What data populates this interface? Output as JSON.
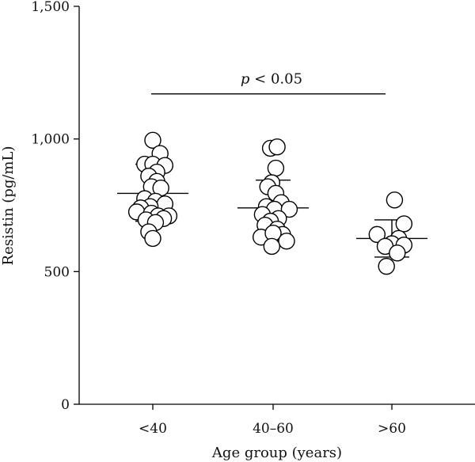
{
  "chart_data": {
    "type": "scatter",
    "title": "",
    "xlabel": "Age group (years)",
    "ylabel": "Resistin (pg/mL)",
    "ylim": [
      0,
      1500
    ],
    "y_ticks": [
      0,
      500,
      1000,
      1500
    ],
    "y_tick_labels": [
      "0",
      "500",
      "1,000",
      "1,500"
    ],
    "categories": [
      "<40",
      "40–60",
      ">60"
    ],
    "annotation": {
      "text_italic": "p",
      "text_rest": " < 0.05",
      "from_category": "<40",
      "to_category": ">60",
      "y": 1170
    },
    "groups": [
      {
        "category": "<40",
        "mean": 795,
        "sd_upper": 905,
        "sd_lower": 690,
        "points": [
          {
            "j": 0.0,
            "v": 995
          },
          {
            "j": 0.27,
            "v": 945
          },
          {
            "j": -0.3,
            "v": 905
          },
          {
            "j": 0.0,
            "v": 905
          },
          {
            "j": 0.45,
            "v": 900
          },
          {
            "j": 0.15,
            "v": 875
          },
          {
            "j": -0.15,
            "v": 860
          },
          {
            "j": 0.15,
            "v": 840
          },
          {
            "j": -0.05,
            "v": 820
          },
          {
            "j": 0.3,
            "v": 815
          },
          {
            "j": -0.3,
            "v": 775
          },
          {
            "j": 0.1,
            "v": 765
          },
          {
            "j": 0.45,
            "v": 755
          },
          {
            "j": -0.1,
            "v": 745
          },
          {
            "j": -0.45,
            "v": 740
          },
          {
            "j": -0.6,
            "v": 725
          },
          {
            "j": -0.05,
            "v": 720
          },
          {
            "j": 0.2,
            "v": 710
          },
          {
            "j": 0.6,
            "v": 710
          },
          {
            "j": 0.4,
            "v": 700
          },
          {
            "j": -0.25,
            "v": 695
          },
          {
            "j": 0.1,
            "v": 685
          },
          {
            "j": -0.15,
            "v": 650
          },
          {
            "j": 0.0,
            "v": 625
          }
        ]
      },
      {
        "category": "40–60",
        "mean": 740,
        "sd_upper": 845,
        "sd_lower": 630,
        "points": [
          {
            "j": -0.1,
            "v": 965
          },
          {
            "j": 0.15,
            "v": 970
          },
          {
            "j": 0.1,
            "v": 890
          },
          {
            "j": -0.05,
            "v": 835
          },
          {
            "j": -0.2,
            "v": 820
          },
          {
            "j": 0.1,
            "v": 795
          },
          {
            "j": 0.3,
            "v": 760
          },
          {
            "j": -0.25,
            "v": 745
          },
          {
            "j": 0.05,
            "v": 735
          },
          {
            "j": 0.6,
            "v": 735
          },
          {
            "j": -0.4,
            "v": 715
          },
          {
            "j": 0.2,
            "v": 700
          },
          {
            "j": -0.1,
            "v": 690
          },
          {
            "j": -0.3,
            "v": 675
          },
          {
            "j": 0.15,
            "v": 660
          },
          {
            "j": 0.35,
            "v": 640
          },
          {
            "j": -0.45,
            "v": 630
          },
          {
            "j": 0.0,
            "v": 645
          },
          {
            "j": 0.5,
            "v": 615
          },
          {
            "j": -0.05,
            "v": 595
          }
        ]
      },
      {
        "category": ">60",
        "mean": 625,
        "sd_upper": 695,
        "sd_lower": 555,
        "points": [
          {
            "j": 0.1,
            "v": 770
          },
          {
            "j": 0.45,
            "v": 680
          },
          {
            "j": -0.55,
            "v": 640
          },
          {
            "j": 0.25,
            "v": 625
          },
          {
            "j": 0.0,
            "v": 605
          },
          {
            "j": -0.25,
            "v": 595
          },
          {
            "j": 0.45,
            "v": 600
          },
          {
            "j": 0.2,
            "v": 570
          },
          {
            "j": -0.2,
            "v": 520
          }
        ]
      }
    ]
  }
}
